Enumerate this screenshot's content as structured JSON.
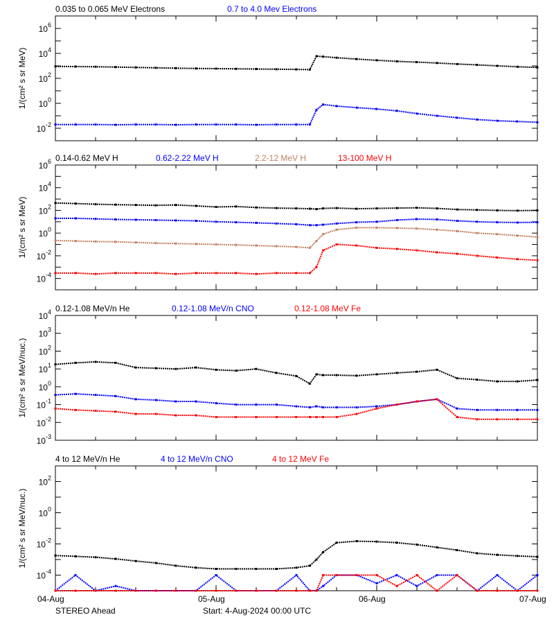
{
  "chart_data": [
    {
      "type": "scatter",
      "ylabel": "1/(cm² s sr MeV)",
      "yscale": "log",
      "ylim": [
        0.001,
        10000000
      ],
      "ytick_labels": [
        "10^-2",
        "10^0",
        "10^2",
        "10^4",
        "10^6"
      ],
      "legend_placement": "top-left",
      "x": [
        "2024-08-04T00:00",
        "2024-08-04T03:00",
        "2024-08-04T06:00",
        "2024-08-04T09:00",
        "2024-08-04T12:00",
        "2024-08-04T15:00",
        "2024-08-04T18:00",
        "2024-08-04T21:00",
        "2024-08-05T00:00",
        "2024-08-05T03:00",
        "2024-08-05T06:00",
        "2024-08-05T09:00",
        "2024-08-05T12:00",
        "2024-08-05T14:00",
        "2024-08-05T15:00",
        "2024-08-05T16:00",
        "2024-08-05T18:00",
        "2024-08-05T21:00",
        "2024-08-06T00:00",
        "2024-08-06T03:00",
        "2024-08-06T06:00",
        "2024-08-06T09:00",
        "2024-08-06T12:00",
        "2024-08-06T15:00",
        "2024-08-06T18:00",
        "2024-08-06T21:00",
        "2024-08-07T00:00"
      ],
      "series": [
        {
          "name": "0.035 to 0.065 MeV Electrons",
          "color": "#000000",
          "values": [
            900,
            880,
            850,
            800,
            750,
            700,
            650,
            620,
            600,
            580,
            560,
            540,
            520,
            500,
            6000,
            5500,
            4500,
            3500,
            2800,
            2300,
            2000,
            1700,
            1400,
            1200,
            1000,
            850,
            750
          ]
        },
        {
          "name": "0.7 to 4.0 Mev Electrons",
          "color": "#0000ff",
          "values": [
            0.02,
            0.02,
            0.02,
            0.019,
            0.02,
            0.02,
            0.019,
            0.02,
            0.02,
            0.02,
            0.019,
            0.02,
            0.02,
            0.02,
            0.3,
            0.8,
            0.6,
            0.45,
            0.35,
            0.25,
            0.15,
            0.1,
            0.07,
            0.05,
            0.04,
            0.035,
            0.03
          ]
        }
      ]
    },
    {
      "type": "scatter",
      "ylabel": "1/(cm² s sr MeV)",
      "yscale": "log",
      "ylim": [
        1e-05,
        1000000
      ],
      "ytick_labels": [
        "10^-4",
        "10^-2",
        "10^0",
        "10^2",
        "10^4",
        "10^6"
      ],
      "legend_placement": "top-left",
      "x": [
        "2024-08-04T00:00",
        "2024-08-04T03:00",
        "2024-08-04T06:00",
        "2024-08-04T09:00",
        "2024-08-04T12:00",
        "2024-08-04T15:00",
        "2024-08-04T18:00",
        "2024-08-04T21:00",
        "2024-08-05T00:00",
        "2024-08-05T03:00",
        "2024-08-05T06:00",
        "2024-08-05T09:00",
        "2024-08-05T12:00",
        "2024-08-05T14:00",
        "2024-08-05T15:00",
        "2024-08-05T16:00",
        "2024-08-05T18:00",
        "2024-08-05T21:00",
        "2024-08-06T00:00",
        "2024-08-06T03:00",
        "2024-08-06T06:00",
        "2024-08-06T09:00",
        "2024-08-06T12:00",
        "2024-08-06T15:00",
        "2024-08-06T18:00",
        "2024-08-06T21:00",
        "2024-08-07T00:00"
      ],
      "series": [
        {
          "name": "0.14-0.62 MeV H",
          "color": "#000000",
          "values": [
            450,
            400,
            350,
            320,
            300,
            280,
            300,
            250,
            200,
            220,
            180,
            160,
            150,
            140,
            130,
            150,
            160,
            140,
            150,
            160,
            170,
            150,
            120,
            110,
            100,
            95,
            100
          ]
        },
        {
          "name": "0.62-2.22 MeV H",
          "color": "#0000ff",
          "values": [
            20,
            20,
            18,
            16,
            15,
            14,
            13,
            12,
            10,
            9,
            8,
            7,
            6,
            5,
            5,
            5.5,
            7,
            9,
            10,
            14,
            17,
            16,
            12,
            10,
            9,
            8.5,
            9
          ]
        },
        {
          "name": "2.2-12 MeV H",
          "color": "#c08060",
          "values": [
            0.22,
            0.2,
            0.18,
            0.17,
            0.15,
            0.13,
            0.12,
            0.11,
            0.1,
            0.09,
            0.08,
            0.07,
            0.06,
            0.05,
            0.2,
            0.8,
            2,
            3,
            3,
            2.8,
            2.5,
            2,
            1.5,
            1,
            0.8,
            0.6,
            0.45
          ]
        },
        {
          "name": "13-100 MeV H",
          "color": "#ff0000",
          "values": [
            0.0003,
            0.0003,
            0.00025,
            0.0003,
            0.0003,
            0.0003,
            0.00025,
            0.0003,
            0.0003,
            0.0003,
            0.00025,
            0.0003,
            0.0003,
            0.0003,
            0.001,
            0.03,
            0.1,
            0.08,
            0.05,
            0.04,
            0.03,
            0.02,
            0.015,
            0.01,
            0.007,
            0.005,
            0.004
          ]
        }
      ]
    },
    {
      "type": "scatter",
      "ylabel": "1/(cm² s sr MeV/nuc.)",
      "yscale": "log",
      "ylim": [
        0.001,
        10000
      ],
      "ytick_labels": [
        "10^-3",
        "10^-2",
        "10^-1",
        "10^0",
        "10^1",
        "10^2",
        "10^3",
        "10^4"
      ],
      "legend_placement": "top-left",
      "x": [
        "2024-08-04T00:00",
        "2024-08-04T03:00",
        "2024-08-04T06:00",
        "2024-08-04T09:00",
        "2024-08-04T12:00",
        "2024-08-04T15:00",
        "2024-08-04T18:00",
        "2024-08-04T21:00",
        "2024-08-05T00:00",
        "2024-08-05T03:00",
        "2024-08-05T06:00",
        "2024-08-05T09:00",
        "2024-08-05T12:00",
        "2024-08-05T14:00",
        "2024-08-05T15:00",
        "2024-08-05T16:00",
        "2024-08-05T18:00",
        "2024-08-05T21:00",
        "2024-08-06T00:00",
        "2024-08-06T03:00",
        "2024-08-06T06:00",
        "2024-08-06T09:00",
        "2024-08-06T12:00",
        "2024-08-06T15:00",
        "2024-08-06T18:00",
        "2024-08-06T21:00",
        "2024-08-07T00:00"
      ],
      "series": [
        {
          "name": "0.12-1.08 MeV/n He",
          "color": "#000000",
          "values": [
            18,
            22,
            25,
            22,
            12,
            11,
            10,
            12,
            9,
            8,
            10,
            6,
            4,
            1.5,
            5,
            4.5,
            4.5,
            4.2,
            5,
            6,
            7,
            9,
            3,
            2.5,
            2,
            2,
            2.4
          ]
        },
        {
          "name": "0.12-1.08 MeV/n CNO",
          "color": "#0000ff",
          "values": [
            0.35,
            0.4,
            0.35,
            0.3,
            0.2,
            0.18,
            0.15,
            0.15,
            0.12,
            0.1,
            0.1,
            0.1,
            0.08,
            0.07,
            0.08,
            0.07,
            0.07,
            0.07,
            0.08,
            0.1,
            0.15,
            0.2,
            0.06,
            0.05,
            0.05,
            0.05,
            0.05
          ]
        },
        {
          "name": "0.12-1.08 MeV Fe",
          "color": "#ff0000",
          "values": [
            0.06,
            0.05,
            0.045,
            0.04,
            0.03,
            0.03,
            0.025,
            0.025,
            0.02,
            0.02,
            0.02,
            0.02,
            0.02,
            0.02,
            0.02,
            0.02,
            0.02,
            0.03,
            0.06,
            0.1,
            0.15,
            0.2,
            0.02,
            0.015,
            0.015,
            0.015,
            0.015
          ]
        }
      ]
    },
    {
      "type": "scatter",
      "ylabel": "1/(cm² s sr MeV/nuc.)",
      "yscale": "log",
      "ylim": [
        1e-05,
        1000
      ],
      "ytick_labels": [
        "10^-4",
        "10^-2",
        "10^0",
        "10^2"
      ],
      "legend_placement": "top-left",
      "xtick_labels": [
        "04-Aug",
        "05-Aug",
        "06-Aug",
        "07-Aug"
      ],
      "x": [
        "2024-08-04T00:00",
        "2024-08-04T03:00",
        "2024-08-04T06:00",
        "2024-08-04T09:00",
        "2024-08-04T12:00",
        "2024-08-04T15:00",
        "2024-08-04T18:00",
        "2024-08-04T21:00",
        "2024-08-05T00:00",
        "2024-08-05T03:00",
        "2024-08-05T06:00",
        "2024-08-05T09:00",
        "2024-08-05T12:00",
        "2024-08-05T14:00",
        "2024-08-05T15:00",
        "2024-08-05T16:00",
        "2024-08-05T18:00",
        "2024-08-05T21:00",
        "2024-08-06T00:00",
        "2024-08-06T03:00",
        "2024-08-06T06:00",
        "2024-08-06T09:00",
        "2024-08-06T12:00",
        "2024-08-06T15:00",
        "2024-08-06T18:00",
        "2024-08-06T21:00",
        "2024-08-07T00:00"
      ],
      "series": [
        {
          "name": "4 to 12 MeV/n He",
          "color": "#000000",
          "values": [
            0.0018,
            0.0016,
            0.0014,
            0.0011,
            0.0008,
            0.0006,
            0.0004,
            0.0003,
            0.00025,
            0.00025,
            0.00025,
            0.00025,
            0.0003,
            0.0004,
            0.001,
            0.003,
            0.012,
            0.015,
            0.014,
            0.012,
            0.009,
            0.006,
            0.004,
            0.0025,
            0.002,
            0.0017,
            0.0015
          ]
        },
        {
          "name": "4 to 12 MeV/n CNO",
          "color": "#0000ff",
          "values": [
            1e-05,
            0.0001,
            1e-05,
            2e-05,
            1e-05,
            1e-05,
            1e-05,
            1e-05,
            0.0001,
            1e-05,
            1e-05,
            1e-05,
            0.0001,
            1e-05,
            1e-05,
            2e-05,
            0.0001,
            0.0001,
            3e-05,
            0.0001,
            2e-05,
            0.0001,
            0.0001,
            1e-05,
            0.0001,
            1e-05,
            0.0001
          ]
        },
        {
          "name": "4 to 12 MeV Fe",
          "color": "#ff0000",
          "values": [
            1e-05,
            1e-05,
            1e-05,
            1e-05,
            1e-05,
            1e-05,
            1e-05,
            1e-05,
            1e-05,
            1e-05,
            1e-05,
            1e-05,
            1e-05,
            1e-05,
            1e-05,
            0.0001,
            0.0001,
            0.0001,
            0.0001,
            2e-05,
            0.0001,
            1e-05,
            0.0001,
            1e-05,
            1e-05,
            1e-05,
            1e-05
          ]
        }
      ]
    }
  ],
  "footer": {
    "spacecraft": "STEREO Ahead",
    "start": "Start:  4-Aug-2024 00:00 UTC"
  },
  "x_range": [
    "2024-08-04T00:00",
    "2024-08-07T00:00"
  ]
}
